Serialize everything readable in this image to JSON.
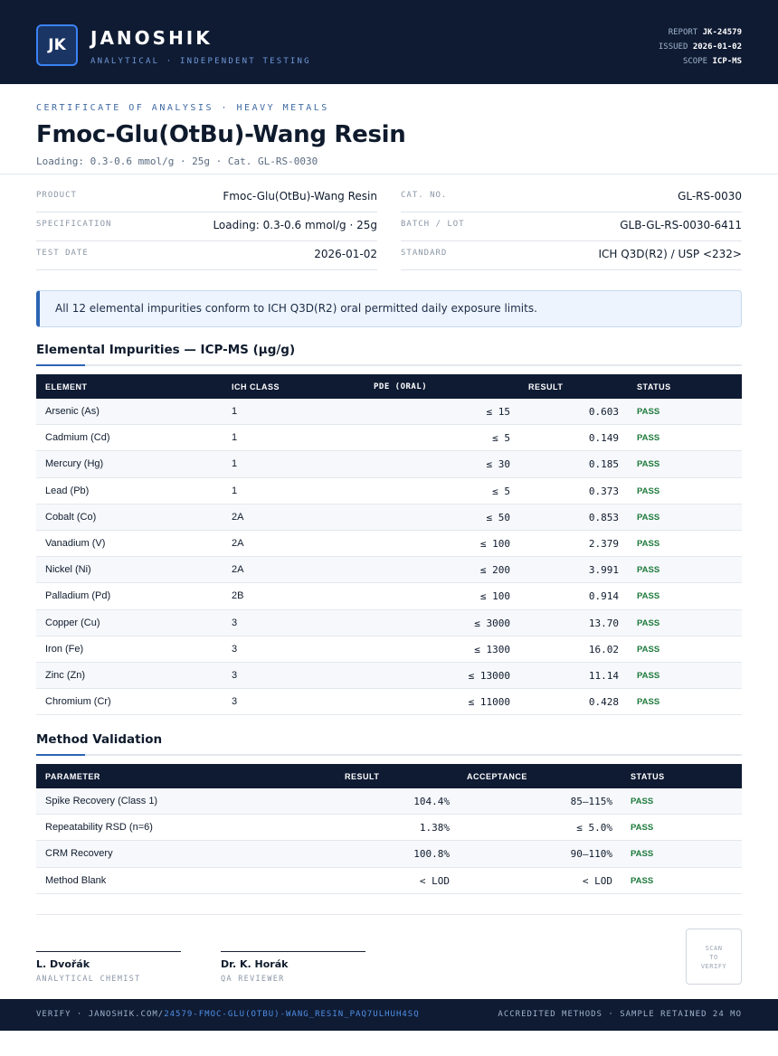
{
  "header": {
    "logo_text": "JK",
    "brand": "JANOSHIK",
    "tagline": "ANALYTICAL · INDEPENDENT TESTING",
    "report_label": "REPORT",
    "report_value": "JK-24579",
    "issued_label": "ISSUED",
    "issued_value": "2026-01-02",
    "scope_label": "SCOPE",
    "scope_value": "ICP-MS"
  },
  "title_block": {
    "eyebrow": "CERTIFICATE OF ANALYSIS · HEAVY METALS",
    "title": "Fmoc-Glu(OtBu)-Wang Resin",
    "subtitle": "Loading: 0.3-0.6 mmol/g · 25g  ·  Cat. GL-RS-0030"
  },
  "info": {
    "product_label": "PRODUCT",
    "product_value": "Fmoc-Glu(OtBu)-Wang Resin",
    "spec_label": "SPECIFICATION",
    "spec_value": "Loading: 0.3-0.6 mmol/g · 25g",
    "date_label": "TEST DATE",
    "date_value": "2026-01-02",
    "cat_label": "CAT. NO.",
    "cat_value": "GL-RS-0030",
    "batch_label": "BATCH / LOT",
    "batch_value": "GLB-GL-RS-0030-6411",
    "standard_label": "STANDARD",
    "standard_value": "ICH Q3D(R2) / USP <232>"
  },
  "notice": "All 12 elemental impurities conform to ICH Q3D(R2) oral permitted daily exposure limits.",
  "impurities": {
    "title": "Elemental Impurities — ICP-MS (µg/g)",
    "headers": [
      "ELEMENT",
      "ICH CLASS",
      "PDE (ORAL)",
      "RESULT",
      "STATUS"
    ],
    "rows": [
      {
        "element": "Arsenic (As)",
        "class": "1",
        "pde": "≤ 15",
        "result": "0.603",
        "status": "PASS"
      },
      {
        "element": "Cadmium (Cd)",
        "class": "1",
        "pde": "≤ 5",
        "result": "0.149",
        "status": "PASS"
      },
      {
        "element": "Mercury (Hg)",
        "class": "1",
        "pde": "≤ 30",
        "result": "0.185",
        "status": "PASS"
      },
      {
        "element": "Lead (Pb)",
        "class": "1",
        "pde": "≤ 5",
        "result": "0.373",
        "status": "PASS"
      },
      {
        "element": "Cobalt (Co)",
        "class": "2A",
        "pde": "≤ 50",
        "result": "0.853",
        "status": "PASS"
      },
      {
        "element": "Vanadium (V)",
        "class": "2A",
        "pde": "≤ 100",
        "result": "2.379",
        "status": "PASS"
      },
      {
        "element": "Nickel (Ni)",
        "class": "2A",
        "pde": "≤ 200",
        "result": "3.991",
        "status": "PASS"
      },
      {
        "element": "Palladium (Pd)",
        "class": "2B",
        "pde": "≤ 100",
        "result": "0.914",
        "status": "PASS"
      },
      {
        "element": "Copper (Cu)",
        "class": "3",
        "pde": "≤ 3000",
        "result": "13.70",
        "status": "PASS"
      },
      {
        "element": "Iron (Fe)",
        "class": "3",
        "pde": "≤ 1300",
        "result": "16.02",
        "status": "PASS"
      },
      {
        "element": "Zinc (Zn)",
        "class": "3",
        "pde": "≤ 13000",
        "result": "11.14",
        "status": "PASS"
      },
      {
        "element": "Chromium (Cr)",
        "class": "3",
        "pde": "≤ 11000",
        "result": "0.428",
        "status": "PASS"
      }
    ]
  },
  "validation": {
    "title": "Method Validation",
    "headers": [
      "PARAMETER",
      "RESULT",
      "ACCEPTANCE",
      "STATUS"
    ],
    "rows": [
      {
        "parameter": "Spike Recovery (Class 1)",
        "result": "104.4%",
        "acceptance": "85–115%",
        "status": "PASS"
      },
      {
        "parameter": "Repeatability RSD (n=6)",
        "result": "1.38%",
        "acceptance": "≤ 5.0%",
        "status": "PASS"
      },
      {
        "parameter": "CRM Recovery",
        "result": "100.8%",
        "acceptance": "90–110%",
        "status": "PASS"
      },
      {
        "parameter": "Method Blank",
        "result": "< LOD",
        "acceptance": "< LOD",
        "status": "PASS"
      }
    ]
  },
  "signatures": [
    {
      "name": "L. Dvořák",
      "role": "ANALYTICAL CHEMIST"
    },
    {
      "name": "Dr. K. Horák",
      "role": "QA REVIEWER"
    }
  ],
  "qr": {
    "line1": "SCAN",
    "line2": "TO",
    "line3": "VERIFY"
  },
  "footer": {
    "verify_prefix": "VERIFY · JANOSHIK.COM/",
    "verify_path": "24579-FMOC-GLU(OTBU)-WANG_RESIN_PAQ7ULHUH4SQ",
    "right": "ACCREDITED METHODS · SAMPLE RETAINED 24 MO"
  },
  "colors": {
    "navy": "#0f1b33",
    "accent": "#2b64b3",
    "pass": "#1e7a3c"
  }
}
